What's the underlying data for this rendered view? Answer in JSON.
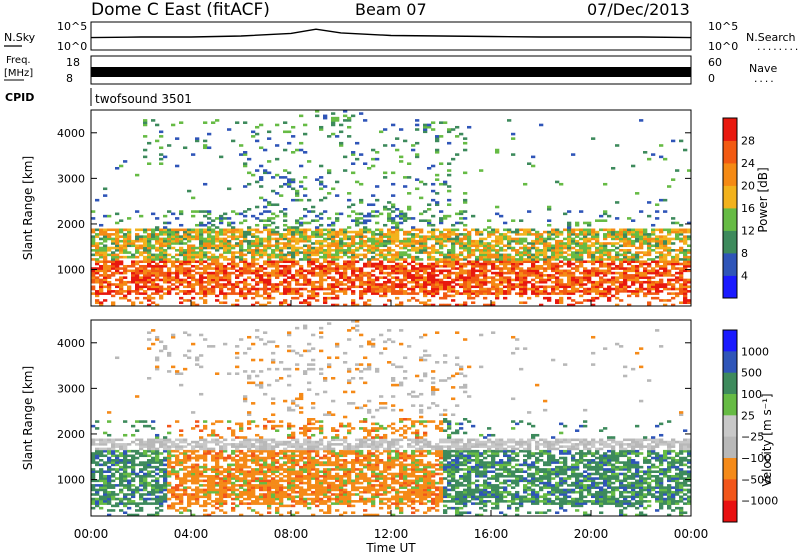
{
  "header": {
    "station": "Dome C East (fitACF)",
    "beam": "Beam 07",
    "date": "07/Dec/2013"
  },
  "left_labels": {
    "nsky": "N.Sky",
    "freq": "Freq.",
    "freq_unit": "[MHz]",
    "cpid": "CPID"
  },
  "right_labels": {
    "nsearch": "N.Search",
    "nsearch_dots": "........",
    "nave": "Nave",
    "nave_dots": "...."
  },
  "cpid_value": "twofsound 3501",
  "colors": {
    "power_scale": [
      "#1a1aff",
      "#2f55b8",
      "#3d8a5c",
      "#66bb44",
      "#f2b21c",
      "#f58a14",
      "#f25a12",
      "#e8180e"
    ],
    "velocity_scale": [
      "#e81010",
      "#f2561a",
      "#f58a18",
      "#b8b8b8",
      "#c8c8c8",
      "#66bb44",
      "#3d8a5c",
      "#2f55b8",
      "#1a1aff"
    ],
    "ground_scatter": "#b0b0b0"
  },
  "chart_data": [
    {
      "type": "line",
      "name": "N.Sky / N.Search",
      "yticks_left": [
        "10^5",
        "10^0"
      ],
      "yticks_right": [
        "10^5",
        "10^0"
      ],
      "x": [
        0,
        2,
        4,
        6,
        8,
        9,
        10,
        12,
        14,
        16,
        18,
        20,
        22,
        24
      ],
      "y": [
        2.2,
        2.3,
        2.3,
        2.5,
        3.0,
        3.8,
        3.1,
        2.6,
        2.5,
        2.4,
        2.3,
        2.3,
        2.3,
        2.2
      ]
    },
    {
      "type": "area",
      "name": "Freq / Nave",
      "yticks_left": [
        "18",
        "8"
      ],
      "yticks_right": [
        "60",
        "0"
      ],
      "x": [
        0,
        24
      ],
      "y": [
        10.5,
        10.5
      ]
    },
    {
      "type": "heatmap",
      "panel": "power",
      "ylabel": "Slant Range [km]",
      "yticks": [
        "1000",
        "2000",
        "3000",
        "4000"
      ],
      "ylim": [
        200,
        4500
      ],
      "xlim": [
        0,
        24
      ],
      "colorbar_label": "Power [dB]",
      "colorbar_ticks": [
        "4",
        "8",
        "12",
        "16",
        "20",
        "24",
        "28"
      ],
      "zlim": [
        0,
        32
      ]
    },
    {
      "type": "heatmap",
      "panel": "velocity",
      "ylabel": "Slant Range [km]",
      "yticks": [
        "1000",
        "2000",
        "3000",
        "4000"
      ],
      "ylim": [
        200,
        4500
      ],
      "xlim": [
        0,
        24
      ],
      "xlabel": "Time UT",
      "xticks": [
        "00:00",
        "04:00",
        "08:00",
        "12:00",
        "16:00",
        "20:00",
        "00:00"
      ],
      "colorbar_label": "Velocity [m s⁻¹]",
      "colorbar_ticks": [
        "1000",
        "500",
        "100",
        "25",
        "−25",
        "−100",
        "−500",
        "−1000"
      ]
    }
  ]
}
